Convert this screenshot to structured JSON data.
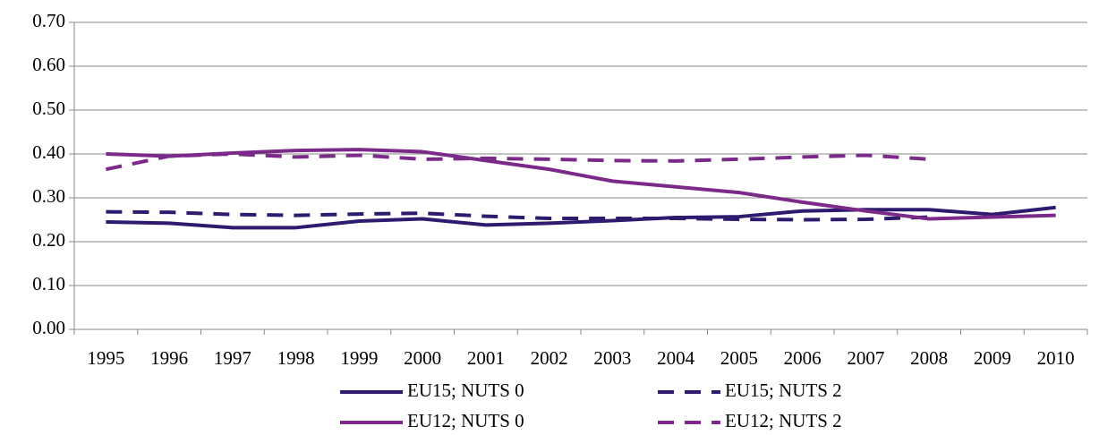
{
  "chart_data": {
    "type": "line",
    "categories": [
      "1995",
      "1996",
      "1997",
      "1998",
      "1999",
      "2000",
      "2001",
      "2002",
      "2003",
      "2004",
      "2005",
      "2006",
      "2007",
      "2008",
      "2009",
      "2010"
    ],
    "series": [
      {
        "name": "EU15; NUTS 0",
        "color": "#2e1a6e",
        "dashed": false,
        "values": [
          0.245,
          0.242,
          0.232,
          0.232,
          0.247,
          0.252,
          0.238,
          0.242,
          0.248,
          0.255,
          0.257,
          0.27,
          0.273,
          0.273,
          0.262,
          0.278
        ]
      },
      {
        "name": "EU15; NUTS 2",
        "color": "#2e1a6e",
        "dashed": true,
        "values": [
          0.268,
          0.267,
          0.262,
          0.26,
          0.263,
          0.265,
          0.258,
          0.253,
          0.253,
          0.253,
          0.251,
          0.25,
          0.251,
          0.256,
          null,
          null
        ]
      },
      {
        "name": "EU12; NUTS 0",
        "color": "#7b2a8a",
        "dashed": false,
        "values": [
          0.4,
          0.395,
          0.402,
          0.408,
          0.41,
          0.405,
          0.385,
          0.365,
          0.338,
          0.325,
          0.312,
          0.29,
          0.27,
          0.252,
          0.256,
          0.26
        ]
      },
      {
        "name": "EU12; NUTS 2",
        "color": "#7b2a8a",
        "dashed": true,
        "values": [
          0.365,
          0.395,
          0.4,
          0.393,
          0.397,
          0.388,
          0.39,
          0.388,
          0.385,
          0.384,
          0.388,
          0.393,
          0.397,
          0.388,
          null,
          null
        ]
      }
    ],
    "ylim": [
      0,
      0.7
    ],
    "yticks": [
      {
        "value": 0,
        "label": "0.00"
      },
      {
        "value": 0.1,
        "label": "0.10"
      },
      {
        "value": 0.2,
        "label": "0.20"
      },
      {
        "value": 0.3,
        "label": "0.30"
      },
      {
        "value": 0.4,
        "label": "0.40"
      },
      {
        "value": 0.5,
        "label": "0.50"
      },
      {
        "value": 0.6,
        "label": "0.60"
      },
      {
        "value": 0.7,
        "label": "0.70"
      }
    ],
    "grid": true
  }
}
